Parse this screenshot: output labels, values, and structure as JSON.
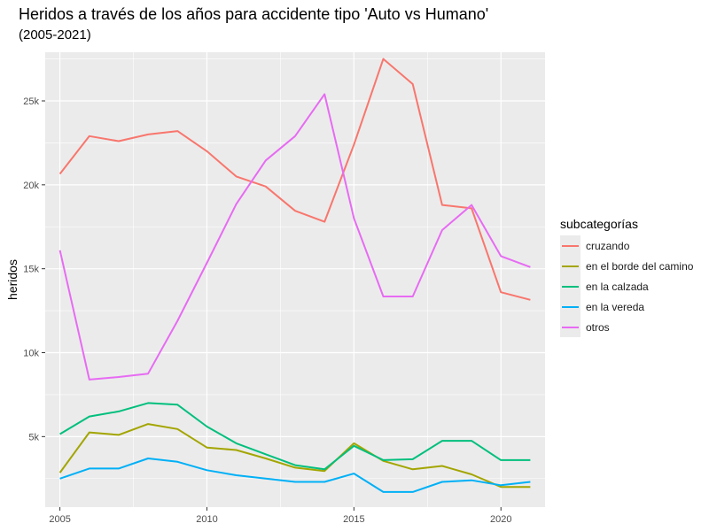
{
  "chart_data": {
    "type": "line",
    "title": "Heridos a través de los años para accidente tipo 'Auto vs Humano'",
    "subtitle": "(2005-2021)",
    "xlabel": "",
    "ylabel": "heridos",
    "xlim": [
      2004.5,
      2021.5
    ],
    "ylim": [
      800,
      27900
    ],
    "x_ticks": [
      2005,
      2010,
      2015,
      2020
    ],
    "y_ticks": [
      5000,
      10000,
      15000,
      20000,
      25000
    ],
    "y_tick_labels": [
      "5k",
      "10k",
      "15k",
      "20k",
      "25k"
    ],
    "grid": true,
    "legend": {
      "title": "subcategorías",
      "position": "right"
    },
    "x": [
      2005,
      2006,
      2007,
      2008,
      2009,
      2010,
      2011,
      2012,
      2013,
      2014,
      2015,
      2016,
      2017,
      2018,
      2019,
      2020,
      2021
    ],
    "series": [
      {
        "name": "cruzando",
        "color": "#F8766D",
        "values": [
          20650,
          22900,
          22600,
          23000,
          23200,
          22000,
          20500,
          19900,
          18450,
          17800,
          22400,
          27500,
          26000,
          18800,
          18600,
          13600,
          13150
        ]
      },
      {
        "name": "en el borde del camino",
        "color": "#A3A500",
        "values": [
          2850,
          5250,
          5100,
          5750,
          5450,
          4350,
          4200,
          3700,
          3150,
          2950,
          4600,
          3550,
          3050,
          3250,
          2750,
          2000,
          2000
        ]
      },
      {
        "name": "en la calzada",
        "color": "#00BF7D",
        "values": [
          5150,
          6200,
          6500,
          7000,
          6900,
          5600,
          4600,
          3950,
          3300,
          3050,
          4450,
          3600,
          3650,
          4750,
          4750,
          3600,
          3600
        ]
      },
      {
        "name": "en la vereda",
        "color": "#00B0F6",
        "values": [
          2500,
          3100,
          3100,
          3700,
          3500,
          3000,
          2700,
          2500,
          2300,
          2300,
          2800,
          1700,
          1700,
          2300,
          2400,
          2100,
          2300
        ]
      },
      {
        "name": "otros",
        "color": "#E76BF3",
        "values": [
          16100,
          8400,
          8550,
          8750,
          11900,
          15350,
          18850,
          21450,
          22900,
          25400,
          18000,
          13350,
          13350,
          17300,
          18800,
          15750,
          15100
        ]
      }
    ]
  }
}
